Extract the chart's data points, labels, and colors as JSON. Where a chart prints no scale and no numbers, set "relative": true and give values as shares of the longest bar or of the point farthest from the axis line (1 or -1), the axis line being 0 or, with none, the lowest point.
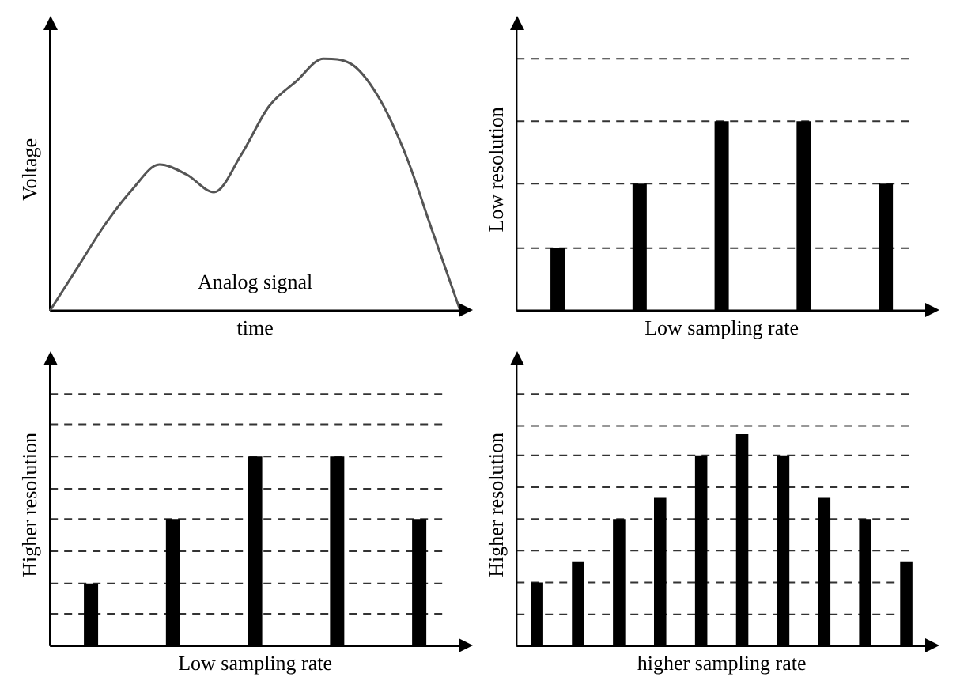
{
  "chart_data": [
    {
      "type": "line",
      "relative": true,
      "ylabel": "Voltage",
      "xlabel": "time",
      "annotations": [
        "Analog signal"
      ],
      "tick_labels": false,
      "marker": "none",
      "categories": [
        null,
        null,
        null,
        null,
        null,
        null,
        null,
        null,
        null,
        null,
        null,
        null,
        null,
        null,
        null,
        null
      ],
      "series": [
        {
          "color": "#555555",
          "values": [
            0,
            0.17,
            0.34,
            0.48,
            0.58,
            0.54,
            0.47,
            0.62,
            0.81,
            0.91,
            1,
            0.98,
            0.85,
            0.62,
            0.31,
            0
          ]
        }
      ]
    },
    {
      "type": "bar",
      "relative": true,
      "ylabel": "Low resolution",
      "xlabel": "Low sampling rate",
      "tick_labels": false,
      "categories": [
        null,
        null,
        null,
        null,
        null
      ],
      "series": [
        {
          "color": "#000000",
          "values": [
            0.33,
            0.67,
            1,
            1,
            0.67
          ]
        }
      ],
      "ref_lines": [
        {
          "axis": "y",
          "value": 0.33,
          "line_style": "dashed"
        },
        {
          "axis": "y",
          "value": 0.67,
          "line_style": "dashed"
        },
        {
          "axis": "y",
          "value": 1,
          "line_style": "dashed"
        },
        {
          "axis": "y",
          "value": 1.33,
          "line_style": "dashed"
        }
      ]
    },
    {
      "type": "bar",
      "relative": true,
      "ylabel": "Higher resolution",
      "xlabel": "Low sampling rate",
      "tick_labels": false,
      "categories": [
        null,
        null,
        null,
        null,
        null
      ],
      "series": [
        {
          "color": "#000000",
          "values": [
            0.33,
            0.67,
            1,
            1,
            0.67
          ]
        }
      ],
      "ref_lines": [
        {
          "axis": "y",
          "value": 0.17,
          "line_style": "dashed"
        },
        {
          "axis": "y",
          "value": 0.33,
          "line_style": "dashed"
        },
        {
          "axis": "y",
          "value": 0.5,
          "line_style": "dashed"
        },
        {
          "axis": "y",
          "value": 0.67,
          "line_style": "dashed"
        },
        {
          "axis": "y",
          "value": 0.83,
          "line_style": "dashed"
        },
        {
          "axis": "y",
          "value": 1,
          "line_style": "dashed"
        },
        {
          "axis": "y",
          "value": 1.17,
          "line_style": "dashed"
        },
        {
          "axis": "y",
          "value": 1.33,
          "line_style": "dashed"
        }
      ]
    },
    {
      "type": "bar",
      "relative": true,
      "ylabel": "Higher resolution",
      "xlabel": "higher sampling rate",
      "tick_labels": false,
      "categories": [
        null,
        null,
        null,
        null,
        null,
        null,
        null,
        null,
        null,
        null
      ],
      "series": [
        {
          "color": "#000000",
          "values": [
            0.3,
            0.4,
            0.6,
            0.7,
            0.9,
            1,
            0.9,
            0.7,
            0.6,
            0.4
          ]
        }
      ],
      "ref_lines": [
        {
          "axis": "y",
          "value": 0.15,
          "line_style": "dashed"
        },
        {
          "axis": "y",
          "value": 0.3,
          "line_style": "dashed"
        },
        {
          "axis": "y",
          "value": 0.45,
          "line_style": "dashed"
        },
        {
          "axis": "y",
          "value": 0.6,
          "line_style": "dashed"
        },
        {
          "axis": "y",
          "value": 0.75,
          "line_style": "dashed"
        },
        {
          "axis": "y",
          "value": 0.9,
          "line_style": "dashed"
        },
        {
          "axis": "y",
          "value": 1.04,
          "line_style": "dashed"
        },
        {
          "axis": "y",
          "value": 1.19,
          "line_style": "dashed"
        }
      ]
    }
  ]
}
